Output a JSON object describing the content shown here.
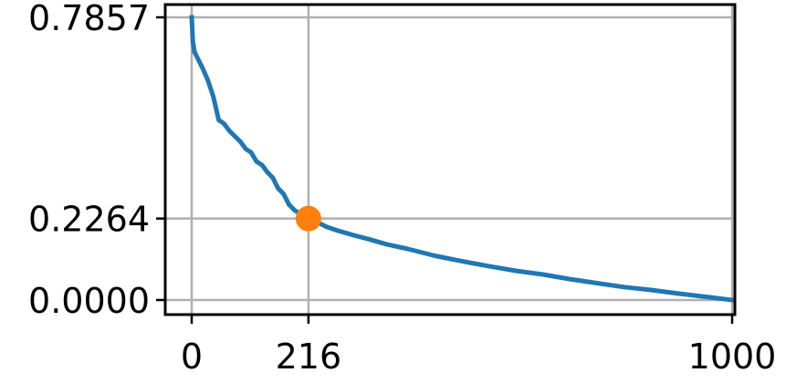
{
  "chart_data": {
    "type": "line",
    "title": "",
    "xlabel": "",
    "ylabel": "",
    "xlim": [
      -50,
      1000
    ],
    "ylim": [
      -0.035,
      0.7857
    ],
    "grid": true,
    "legend": null,
    "x_ticks": [
      0,
      216,
      1000
    ],
    "y_ticks": [
      0.0,
      0.2264,
      0.7857
    ],
    "x_tick_labels": [
      "0",
      "216",
      "1000"
    ],
    "y_tick_labels": [
      "0.0000",
      "0.2264",
      "0.7857"
    ],
    "series": [
      {
        "color": "#1f77b4",
        "x": [
          0,
          2,
          5,
          10,
          20,
          30,
          40,
          50,
          60,
          70,
          80,
          90,
          100,
          110,
          120,
          130,
          140,
          150,
          160,
          170,
          180,
          190,
          200,
          210,
          216,
          230,
          250,
          270,
          300,
          330,
          360,
          400,
          450,
          500,
          550,
          600,
          650,
          700,
          750,
          800,
          850,
          900,
          950,
          1000
        ],
        "y": [
          0.7857,
          0.72,
          0.69,
          0.675,
          0.645,
          0.61,
          0.565,
          0.5,
          0.49,
          0.47,
          0.455,
          0.44,
          0.42,
          0.41,
          0.385,
          0.375,
          0.355,
          0.34,
          0.31,
          0.295,
          0.265,
          0.25,
          0.24,
          0.232,
          0.2264,
          0.218,
          0.203,
          0.193,
          0.18,
          0.168,
          0.155,
          0.142,
          0.123,
          0.108,
          0.094,
          0.081,
          0.071,
          0.058,
          0.047,
          0.036,
          0.028,
          0.018,
          0.009,
          0.0
        ]
      }
    ],
    "highlight_point": {
      "x": 216,
      "y": 0.2264,
      "color": "#ff7f0e"
    }
  }
}
